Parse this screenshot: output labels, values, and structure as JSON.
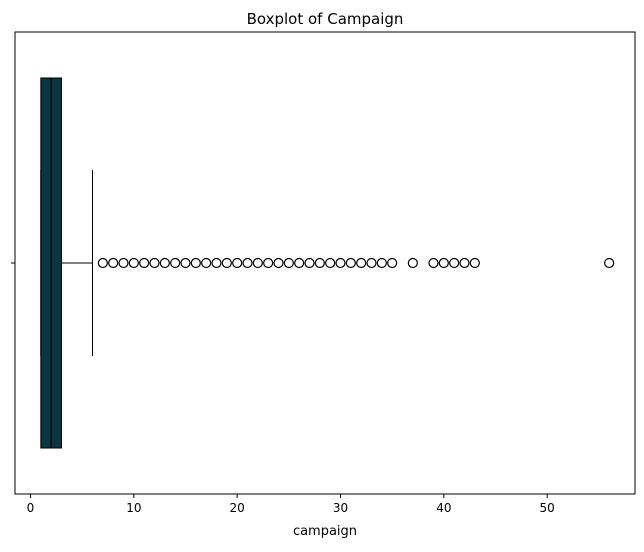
{
  "chart_data": {
    "type": "boxplot",
    "title": "Boxplot of Campaign",
    "xlabel": "campaign",
    "ylabel": "",
    "orientation": "horizontal",
    "xlim": [
      -1.5,
      58.5
    ],
    "xticks": [
      0,
      10,
      20,
      30,
      40,
      50
    ],
    "xtick_labels": [
      "0",
      "10",
      "20",
      "30",
      "40",
      "50"
    ],
    "grid": false,
    "box": {
      "whisker_low": 1,
      "q1": 1,
      "median": 2,
      "q3": 3,
      "whisker_high": 6,
      "fill_color": "#0b3641",
      "edge_color": "#000000"
    },
    "outliers": [
      7,
      8,
      9,
      10,
      11,
      12,
      13,
      14,
      15,
      16,
      17,
      18,
      19,
      20,
      21,
      22,
      23,
      24,
      25,
      26,
      27,
      28,
      29,
      30,
      31,
      32,
      33,
      34,
      35,
      37,
      39,
      40,
      41,
      42,
      43,
      56
    ]
  }
}
